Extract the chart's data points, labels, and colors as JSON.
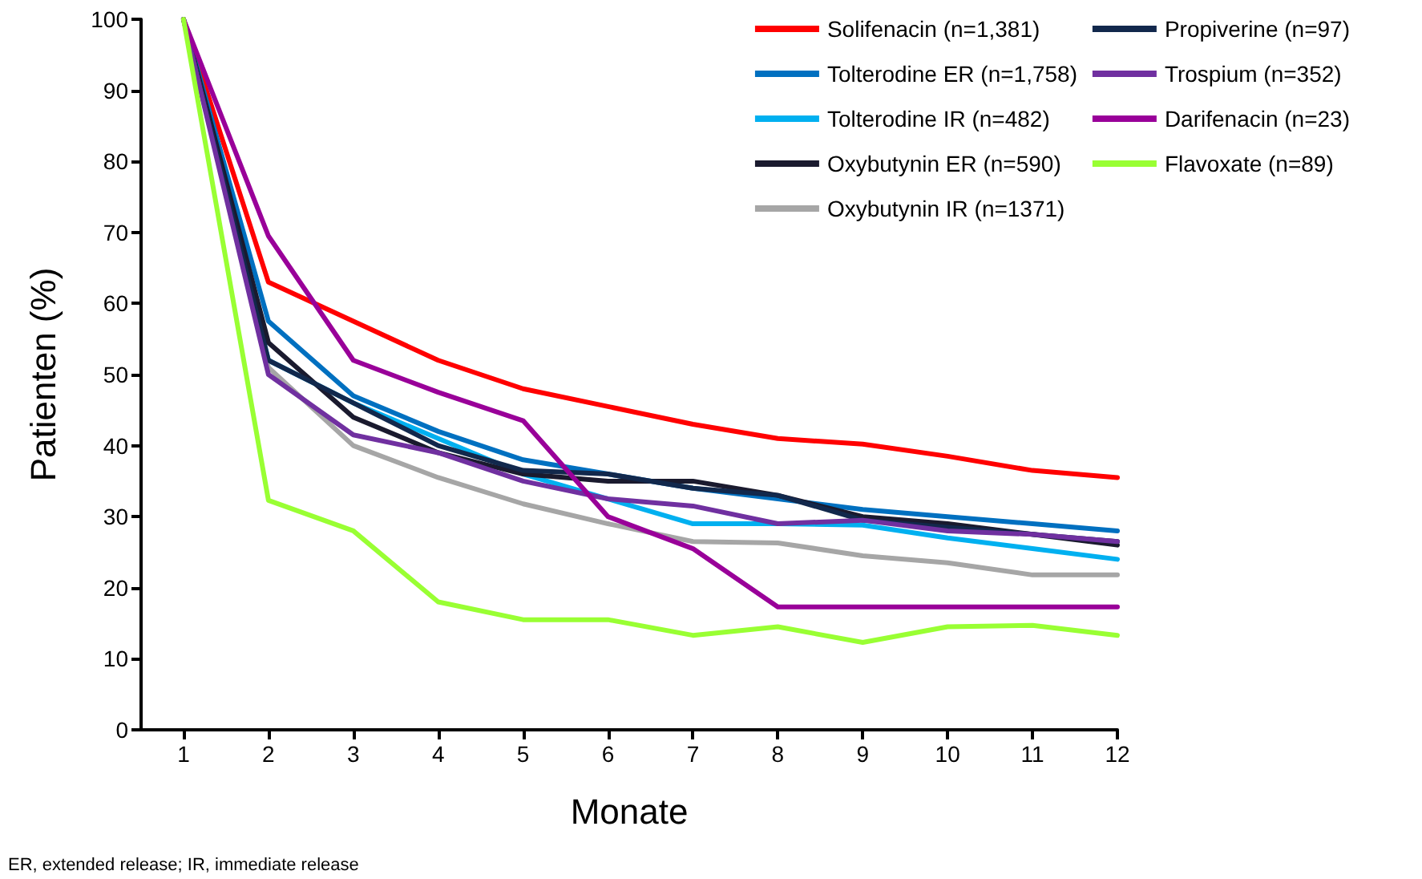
{
  "chart_data": {
    "type": "line",
    "xlabel": "Monate",
    "ylabel": "Patienten (%)",
    "x": [
      1,
      2,
      3,
      4,
      5,
      6,
      7,
      8,
      9,
      10,
      11,
      12
    ],
    "xlim": [
      0.5,
      12
    ],
    "xticks": [
      1,
      2,
      3,
      4,
      5,
      6,
      7,
      8,
      9,
      10,
      11,
      12
    ],
    "ylim": [
      0,
      100
    ],
    "yticks": [
      0,
      10,
      20,
      30,
      40,
      50,
      60,
      70,
      80,
      90,
      100
    ],
    "grid": false,
    "legend": "top right",
    "marker": "none",
    "line_style": "solid",
    "annotations": [
      "ER, extended release; IR, immediate release"
    ],
    "series": [
      {
        "name": "Solifenacin (n=1,381)",
        "color": "#ff0000",
        "values": [
          100,
          63,
          57.5,
          52,
          48,
          45.5,
          43,
          41,
          40.2,
          38.5,
          36.5,
          35.5
        ]
      },
      {
        "name": "Tolterodine ER (n=1,758)",
        "color": "#0070c0",
        "values": [
          100,
          57.5,
          47,
          42,
          38,
          36,
          34,
          32.5,
          31,
          30,
          29,
          28
        ]
      },
      {
        "name": "Tolterodine IR (n=482)",
        "color": "#00b0f0",
        "values": [
          100,
          52,
          46,
          41,
          36,
          32.5,
          29,
          29,
          28.8,
          27,
          25.5,
          24
        ]
      },
      {
        "name": "Oxybutynin ER (n=590)",
        "color": "#1a1a2e",
        "values": [
          100,
          54.5,
          44,
          39,
          36,
          35,
          35,
          33,
          30,
          29,
          27.5,
          26
        ]
      },
      {
        "name": "Oxybutynin IR (n=1371)",
        "color": "#a6a6a6",
        "values": [
          100,
          51,
          40,
          35.5,
          31.8,
          29,
          26.5,
          26.3,
          24.5,
          23.5,
          21.8,
          21.8
        ]
      },
      {
        "name": "Propiverine (n=97)",
        "color": "#12284c",
        "values": [
          100,
          52,
          46,
          40,
          36.5,
          36,
          34,
          33,
          29.5,
          28.5,
          27.5,
          26.5
        ]
      },
      {
        "name": "Trospium (n=352)",
        "color": "#7030a0",
        "values": [
          100,
          50,
          41.5,
          39,
          35,
          32.5,
          31.5,
          29,
          29.5,
          28,
          27.5,
          26.5
        ]
      },
      {
        "name": "Darifenacin (n=23)",
        "color": "#990099",
        "values": [
          100,
          69.5,
          52,
          47.5,
          43.5,
          30,
          25.5,
          17.3,
          17.3,
          17.3,
          17.3,
          17.3
        ]
      },
      {
        "name": "Flavoxate (n=89)",
        "color": "#99ff33",
        "values": [
          100,
          32.3,
          28,
          18,
          15.5,
          15.5,
          13.3,
          14.5,
          12.3,
          14.5,
          14.7,
          13.3
        ]
      }
    ]
  }
}
